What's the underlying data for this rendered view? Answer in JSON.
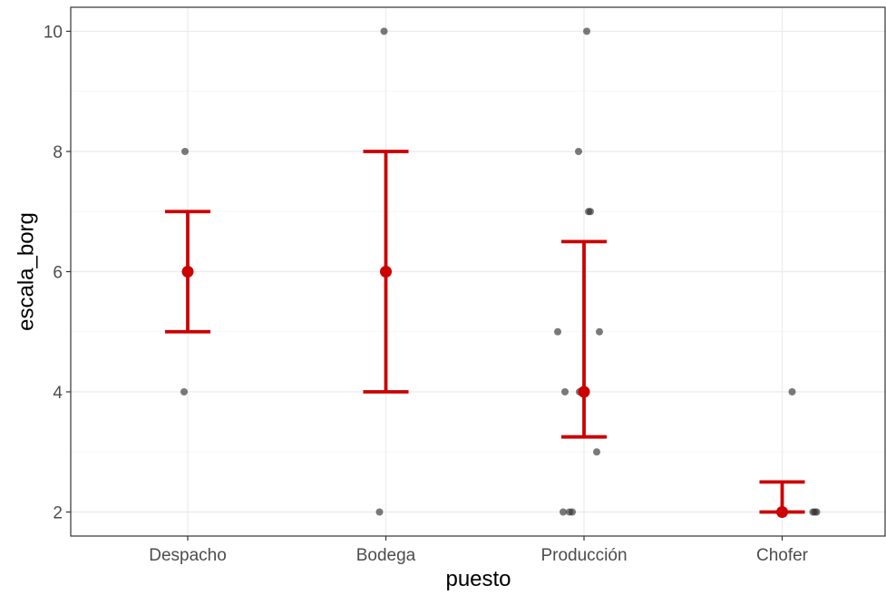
{
  "chart_data": {
    "type": "scatter",
    "title": "",
    "xlabel": "puesto",
    "ylabel": "escala_borg",
    "categories": [
      "Despacho",
      "Bodega",
      "Producción",
      "Chofer"
    ],
    "ylim": [
      1.6,
      10.4
    ],
    "y_ticks": [
      2,
      4,
      6,
      8,
      10
    ],
    "y_tick_labels": [
      "2",
      "4",
      "6",
      "8",
      "10"
    ],
    "grid": true,
    "legend": "none",
    "points_color": "#333333",
    "summary_color": "#cc0000",
    "points": [
      {
        "category": "Despacho",
        "values": [
          8,
          4
        ]
      },
      {
        "category": "Bodega",
        "values": [
          10,
          2
        ]
      },
      {
        "category": "Producción",
        "values": [
          10,
          8,
          7,
          7,
          5,
          5,
          4,
          4,
          3,
          2,
          2,
          2
        ]
      },
      {
        "category": "Chofer",
        "values": [
          4,
          2,
          2,
          2
        ]
      }
    ],
    "summary": [
      {
        "category": "Despacho",
        "median": 6,
        "lower": 5,
        "upper": 7
      },
      {
        "category": "Bodega",
        "median": 6,
        "lower": 4,
        "upper": 8
      },
      {
        "category": "Producción",
        "median": 4,
        "lower": 3.25,
        "upper": 6.5
      },
      {
        "category": "Chofer",
        "median": 2,
        "lower": 2,
        "upper": 2.5
      }
    ]
  }
}
